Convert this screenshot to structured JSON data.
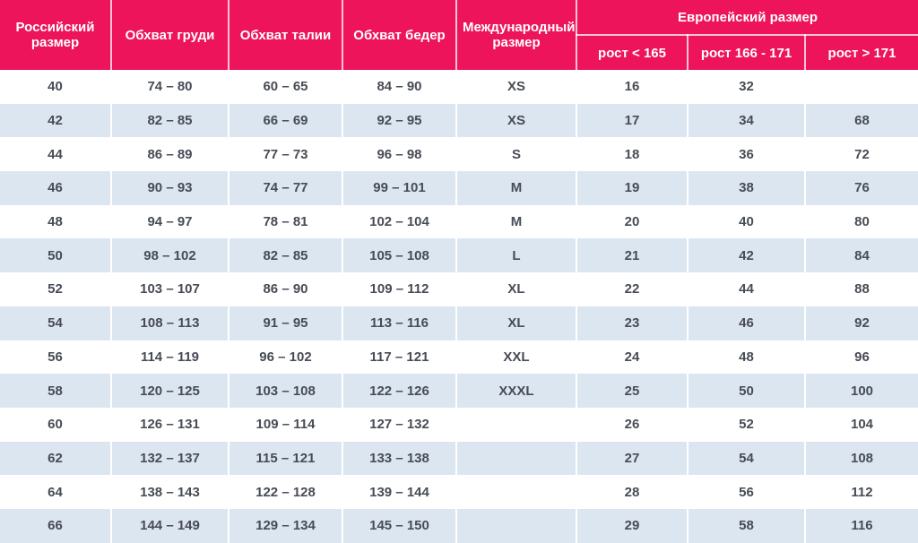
{
  "colors": {
    "header_bg": "#ED145C",
    "header_text": "#FFFFFF",
    "row_bg": "#FFFFFF",
    "row_alt_bg": "#DCE6F1",
    "body_text": "#474C55"
  },
  "chart_data": {
    "type": "table",
    "title": "",
    "headers": {
      "russian_size": "Российский размер",
      "chest": "Обхват груди",
      "waist": "Обхват талии",
      "hips": "Обхват бедер",
      "international_size": "Международный размер",
      "european_group": "Европейский размер",
      "height_lt_165": "рост < 165",
      "height_166_171": "рост 166 - 171",
      "height_gt_171": "рост > 171"
    },
    "column_keys": [
      "russian_size",
      "chest",
      "waist",
      "hips",
      "international_size",
      "height_lt_165",
      "height_166_171",
      "height_gt_171"
    ],
    "column_group": {
      "label": "Европейский размер",
      "spans": [
        "height_lt_165",
        "height_166_171",
        "height_gt_171"
      ]
    },
    "rows": [
      [
        "40",
        "74 – 80",
        "60 – 65",
        "84 – 90",
        "XS",
        "16",
        "32",
        ""
      ],
      [
        "42",
        "82 – 85",
        "66 – 69",
        "92 – 95",
        "XS",
        "17",
        "34",
        "68"
      ],
      [
        "44",
        "86 – 89",
        "77 – 73",
        "96 – 98",
        "S",
        "18",
        "36",
        "72"
      ],
      [
        "46",
        "90 – 93",
        "74 – 77",
        "99 – 101",
        "M",
        "19",
        "38",
        "76"
      ],
      [
        "48",
        "94 – 97",
        "78 – 81",
        "102 – 104",
        "M",
        "20",
        "40",
        "80"
      ],
      [
        "50",
        "98 – 102",
        "82 – 85",
        "105 – 108",
        "L",
        "21",
        "42",
        "84"
      ],
      [
        "52",
        "103 – 107",
        "86 – 90",
        "109 – 112",
        "XL",
        "22",
        "44",
        "88"
      ],
      [
        "54",
        "108 – 113",
        "91 – 95",
        "113 – 116",
        "XL",
        "23",
        "46",
        "92"
      ],
      [
        "56",
        "114 – 119",
        "96 – 102",
        "117 – 121",
        "XXL",
        "24",
        "48",
        "96"
      ],
      [
        "58",
        "120 – 125",
        "103 – 108",
        "122 – 126",
        "XXXL",
        "25",
        "50",
        "100"
      ],
      [
        "60",
        "126 – 131",
        "109 – 114",
        "127 – 132",
        "",
        "26",
        "52",
        "104"
      ],
      [
        "62",
        "132 – 137",
        "115 – 121",
        "133 – 138",
        "",
        "27",
        "54",
        "108"
      ],
      [
        "64",
        "138 – 143",
        "122 – 128",
        "139 – 144",
        "",
        "28",
        "56",
        "112"
      ],
      [
        "66",
        "144 – 149",
        "129 – 134",
        "145 – 150",
        "",
        "29",
        "58",
        "116"
      ]
    ]
  }
}
